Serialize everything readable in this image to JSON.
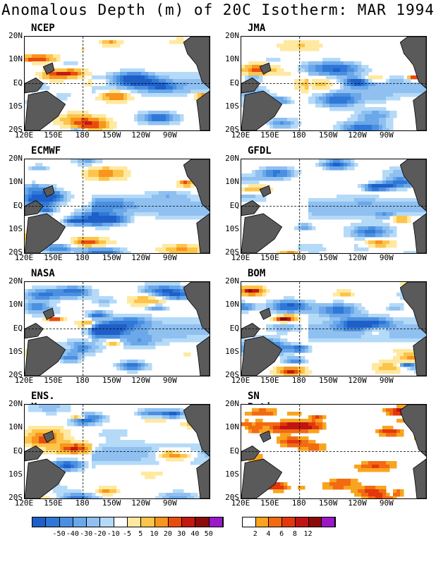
{
  "title": "Anomalous Depth (m) of 20C Isotherm: MAR 1994",
  "lat_labels": [
    "20N",
    "10N",
    "EQ",
    "10S",
    "20S"
  ],
  "lon_labels": [
    "120E",
    "150E",
    "180",
    "150W",
    "120W",
    "90W"
  ],
  "panels": [
    {
      "name": "NCEP",
      "seed": 11,
      "type": "anom"
    },
    {
      "name": "JMA",
      "seed": 23,
      "type": "anom"
    },
    {
      "name": "ECMWF",
      "seed": 37,
      "type": "anom"
    },
    {
      "name": "GFDL",
      "seed": 41,
      "type": "anom"
    },
    {
      "name": "NASA",
      "seed": 53,
      "type": "anom"
    },
    {
      "name": "BOM",
      "seed": 67,
      "type": "anom"
    },
    {
      "name": "ENS. Mean",
      "seed": 79,
      "type": "anom"
    },
    {
      "name": "SN Ratio",
      "seed": 97,
      "type": "sn"
    }
  ],
  "anom_colorbar": {
    "colors": [
      "#1f5fc8",
      "#2f78d8",
      "#4b90e0",
      "#6aa8ea",
      "#8fc0f0",
      "#b4daf8",
      "#ffffff",
      "#ffe9a0",
      "#fcc44a",
      "#f7951c",
      "#e84d0e",
      "#c21a10",
      "#8a0c0c",
      "#9a18c8"
    ],
    "labels": [
      "-50",
      "-40",
      "-30",
      "-20",
      "-10",
      "-5",
      "5",
      "10",
      "20",
      "30",
      "40",
      "50"
    ]
  },
  "sn_colorbar": {
    "colors": [
      "#ffffff",
      "#f9a41e",
      "#f26a12",
      "#e2380c",
      "#bf1414",
      "#8e0a0a",
      "#9a18c8"
    ],
    "labels": [
      "2",
      "4",
      "6",
      "8",
      "12"
    ]
  }
}
